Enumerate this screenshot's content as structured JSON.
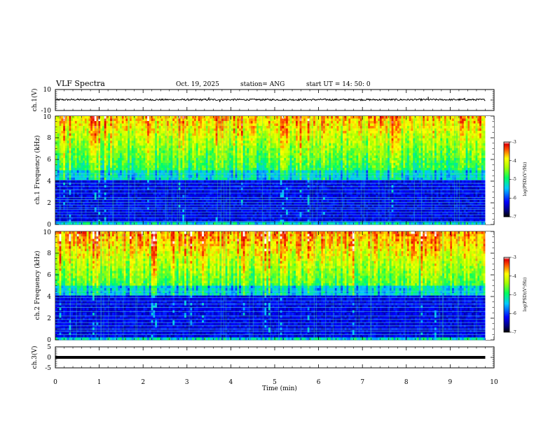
{
  "header": {
    "title": "VLF Spectra",
    "date": "Oct. 19, 2025",
    "station": "station= ANG",
    "start": "start  UT =  14: 50: 0"
  },
  "chart_data": [
    {
      "type": "line",
      "name": "ch1-waveform",
      "ylabel": "ch.1(V)",
      "ylim": [
        -10,
        10
      ],
      "yticks": [
        "10",
        "-10"
      ],
      "xlim": [
        0,
        10
      ],
      "trace_x_end": 9.8,
      "baseline": 0.3,
      "noise_amplitude": 0.8,
      "spikes": [
        {
          "x": 3.5,
          "y": 2.5
        },
        {
          "x": 3.75,
          "y": -2
        },
        {
          "x": 8.5,
          "y": 3
        },
        {
          "x": 9.33,
          "y": 2
        }
      ]
    },
    {
      "type": "heatmap",
      "name": "ch1-spectrogram",
      "ylabel": "ch.1 Frequency (kHz)",
      "ylim": [
        0,
        10
      ],
      "yticks": [
        "0",
        "2",
        "4",
        "6",
        "8",
        "10"
      ],
      "xlim": [
        0,
        10
      ],
      "data_x_end": 9.8,
      "colorbar": {
        "label": "log(PSD)(V²/Hz)",
        "ticks": [
          "-3",
          "-4",
          "-5",
          "-6",
          "-7"
        ],
        "range": [
          -7,
          -3
        ]
      },
      "lines_khz": [
        0.3,
        0.6,
        0.9,
        1.15,
        1.4,
        1.55,
        1.8,
        2.05,
        2.3,
        2.5,
        2.9,
        3.2,
        3.5,
        3.8,
        4.1,
        4.4,
        4.7
      ]
    },
    {
      "type": "heatmap",
      "name": "ch2-spectrogram",
      "ylabel": "ch.2 Frequency (kHz)",
      "ylim": [
        0,
        10
      ],
      "yticks": [
        "0",
        "2",
        "4",
        "6",
        "8",
        "10"
      ],
      "xlim": [
        0,
        10
      ],
      "data_x_end": 9.8,
      "colorbar": {
        "label": "log(PSD)(V²/Hz)",
        "ticks": [
          "-3",
          "-4",
          "-5",
          "-6",
          "-7"
        ],
        "range": [
          -7,
          -3
        ]
      },
      "lines_khz": [
        0.5,
        0.8,
        1.0,
        1.3,
        1.6,
        1.9,
        2.2,
        2.6,
        3.0,
        3.3,
        3.6,
        3.9,
        4.2,
        4.5
      ]
    },
    {
      "type": "line",
      "name": "ch3-waveform",
      "ylabel": "ch.3(V)",
      "ylim": [
        -5,
        5
      ],
      "yticks": [
        "5",
        "0",
        "-5"
      ],
      "xlim": [
        0,
        10
      ],
      "trace_x_end": 9.8,
      "baseline": 0
    }
  ],
  "xaxis": {
    "label": "Time  (min)",
    "ticks": [
      "0",
      "1",
      "2",
      "3",
      "4",
      "5",
      "6",
      "7",
      "8",
      "9",
      "10"
    ]
  }
}
